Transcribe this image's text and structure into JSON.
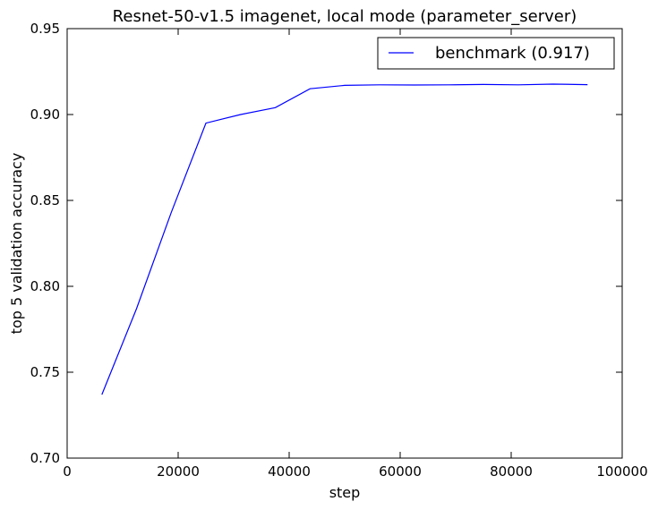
{
  "chart_data": {
    "type": "line",
    "title": "Resnet-50-v1.5 imagenet, local mode (parameter_server)",
    "xlabel": "step",
    "ylabel": "top 5 validation accuracy",
    "xlim": [
      0,
      100000
    ],
    "ylim": [
      0.7,
      0.95
    ],
    "x_ticks": [
      0,
      20000,
      40000,
      60000,
      80000,
      100000
    ],
    "x_tick_labels": [
      "0",
      "20000",
      "40000",
      "60000",
      "80000",
      "100000"
    ],
    "y_ticks": [
      0.7,
      0.75,
      0.8,
      0.85,
      0.9,
      0.95
    ],
    "y_tick_labels": [
      "0.70",
      "0.75",
      "0.80",
      "0.85",
      "0.90",
      "0.95"
    ],
    "grid": false,
    "legend_position": "top-right",
    "series": [
      {
        "name": "benchmark (0.917)",
        "color": "#0000ff",
        "x": [
          6250,
          12500,
          18750,
          25000,
          31250,
          37500,
          43750,
          50000,
          56250,
          62500,
          68750,
          75000,
          81250,
          87500,
          93750
        ],
        "y": [
          0.737,
          0.787,
          0.843,
          0.895,
          0.9,
          0.904,
          0.915,
          0.917,
          0.9173,
          0.9172,
          0.9173,
          0.9175,
          0.9173,
          0.9177,
          0.9174
        ]
      }
    ]
  }
}
